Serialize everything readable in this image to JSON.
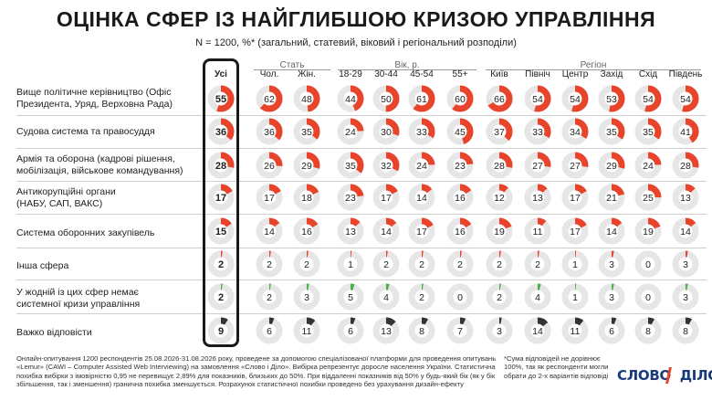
{
  "title": "ОЦІНКА СФЕР ІЗ НАЙГЛИБШОЮ КРИЗОЮ УПРАВЛІННЯ",
  "subtitle": "N = 1200, %* (загальний, статевий, віковий і регіональний розподіли)",
  "colors": {
    "accent": "#e8432b",
    "empty_ring": "#e6e6e6",
    "dark_ring": "#333333",
    "value_text": "#222222"
  },
  "group_headers": {
    "sex": "Стать",
    "age": "Вік, р.",
    "region": "Регіон"
  },
  "columns": [
    "Усі",
    "Чол.",
    "Жін.",
    "18-29",
    "30-44",
    "45-54",
    "55+",
    "Київ",
    "Північ",
    "Центр",
    "Захід",
    "Схід",
    "Південь"
  ],
  "rows": [
    {
      "label": "Вище політичне керівництво (Офіс Президента, Уряд, Верховна Рада)"
    },
    {
      "label": "Судова система та правосуддя"
    },
    {
      "label": "Армія та оборона (кадрові рішення, мобілізація, військове командування)"
    },
    {
      "label": "Антикорупційні органи (НАБУ, САП, ВАКС)"
    },
    {
      "label": "Система оборонних закупівель"
    },
    {
      "label": "Інша сфера"
    },
    {
      "label": "У жодній із цих сфер немає системної кризи управління"
    },
    {
      "label": "Важко відповісти"
    }
  ],
  "chart_data": {
    "type": "table",
    "title": "ОЦІНКА СФЕР ІЗ НАЙГЛИБШОЮ КРИЗОЮ УПРАВЛІННЯ",
    "unit": "%",
    "columns": [
      "Усі",
      "Чол.",
      "Жін.",
      "18-29",
      "30-44",
      "45-54",
      "55+",
      "Київ",
      "Північ",
      "Центр",
      "Захід",
      "Схід",
      "Південь"
    ],
    "series": [
      {
        "name": "Вище політичне керівництво (Офіс Президента, Уряд, Верховна Рада)",
        "color": "#e8432b",
        "values": [
          55,
          62,
          48,
          44,
          50,
          61,
          60,
          66,
          54,
          54,
          53,
          54,
          54
        ]
      },
      {
        "name": "Судова система та правосуддя",
        "color": "#e8432b",
        "values": [
          36,
          36,
          35,
          24,
          30,
          33,
          45,
          37,
          33,
          34,
          35,
          35,
          41
        ]
      },
      {
        "name": "Армія та оборона (кадрові рішення, мобілізація, військове командування)",
        "color": "#e8432b",
        "values": [
          28,
          26,
          29,
          35,
          32,
          24,
          23,
          28,
          27,
          27,
          29,
          24,
          28
        ]
      },
      {
        "name": "Антикорупційні органи (НАБУ, САП, ВАКС)",
        "color": "#e8432b",
        "values": [
          17,
          17,
          18,
          23,
          17,
          14,
          16,
          12,
          13,
          17,
          21,
          25,
          13
        ]
      },
      {
        "name": "Система оборонних закупівель",
        "color": "#e8432b",
        "values": [
          15,
          14,
          16,
          13,
          14,
          17,
          16,
          19,
          11,
          17,
          14,
          19,
          14
        ]
      },
      {
        "name": "Інша сфера",
        "color": "#e8432b",
        "values": [
          2,
          2,
          2,
          1,
          2,
          2,
          2,
          2,
          2,
          1,
          3,
          0,
          3
        ]
      },
      {
        "name": "У жодній із цих сфер немає системної кризи управління",
        "color": "#4cae4c",
        "values": [
          2,
          2,
          3,
          5,
          4,
          2,
          0,
          2,
          4,
          1,
          3,
          0,
          3
        ]
      },
      {
        "name": "Важко відповісти",
        "color": "#333333",
        "values": [
          9,
          6,
          11,
          6,
          13,
          8,
          7,
          3,
          14,
          11,
          6,
          8,
          8
        ]
      }
    ]
  },
  "footnote": "Онлайн-опитування 1200 респондентів 25.08.2026-31.08.2026 року, проведене за допомогою спеціалізованої платформи для проведення опитувань «Lemur» (CAWI – Computer Assisted Web Interviewing) на замовлення «Слово і Діло». Вибірка репрезентує доросле населення України. Статистична похибка вибірки з імовірністю 0,95 не перевищує 2,89% для показників, близьких до 50%. При віддаленні показників від 50% у будь-який бік (як у бік збільшення, так і зменшення) гранична похибка зменшується. Розрахунок статистичної похибки проведено без урахування дизайн-ефекту",
  "side_note": "*Сума відповідей не дорівнює 100%, так як респонденти могли обрати до 2-х варіантів відповіді",
  "logo": "СЛОВО І ДІЛО"
}
